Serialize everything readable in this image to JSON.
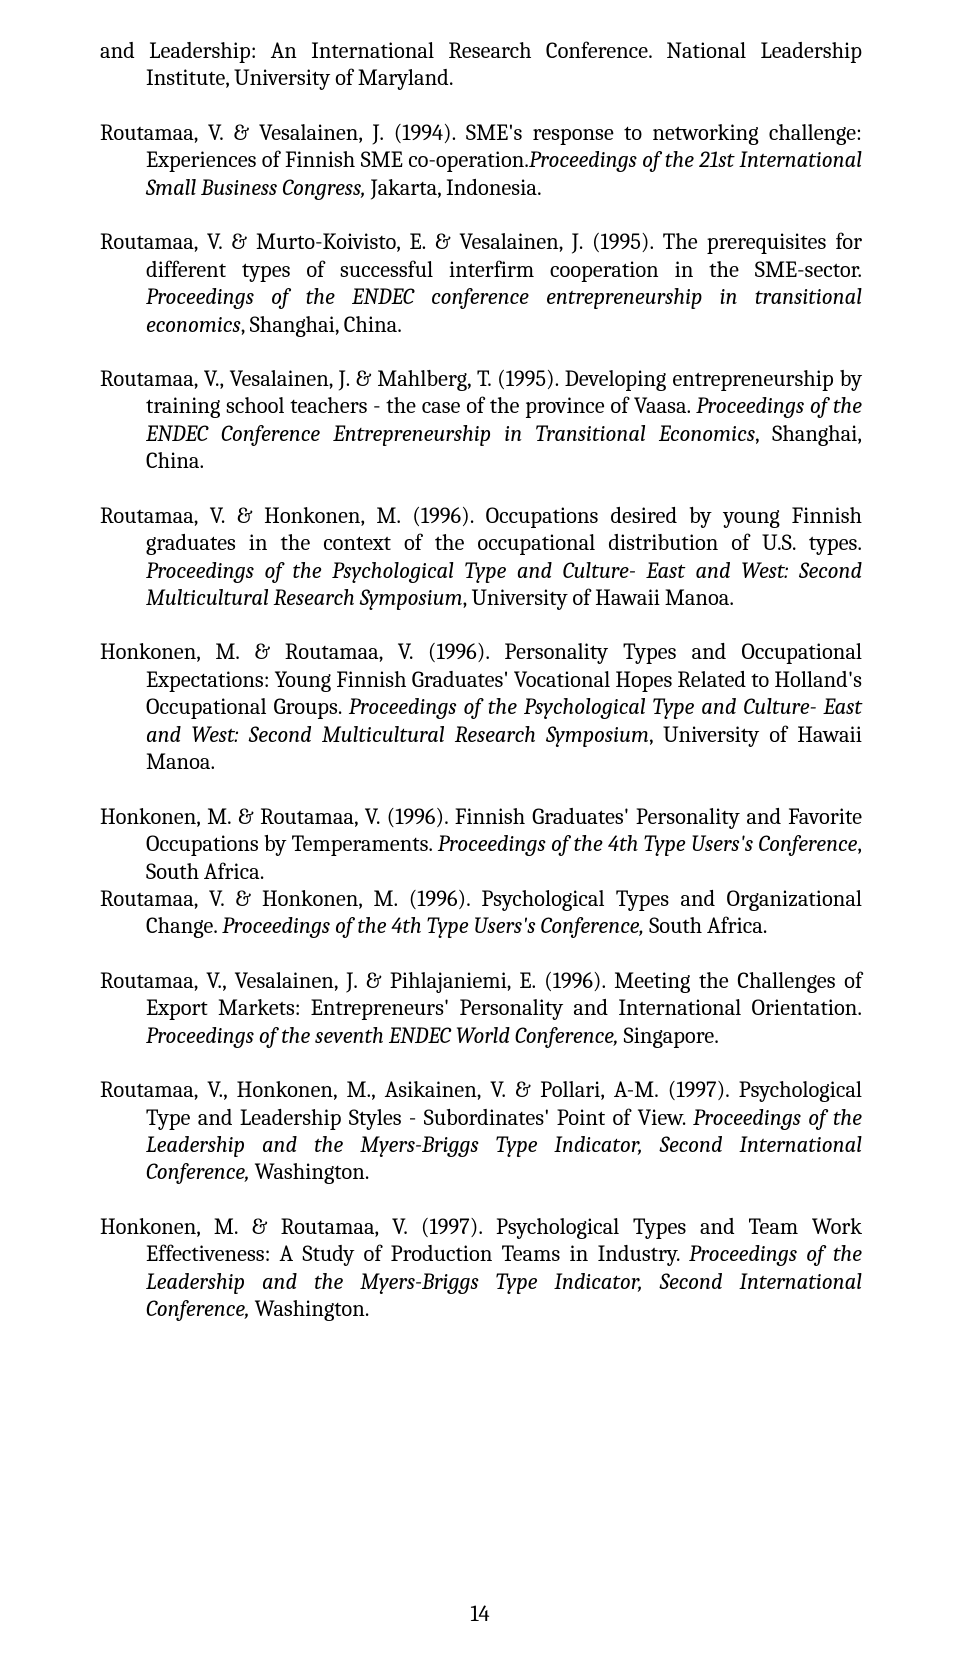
{
  "page_number": "14",
  "references": [
    {
      "authors_title": "and Leadership: An International Research Conference.",
      "venue_prefix": " National Leadership Institute, University of Maryland.",
      "tight": false
    },
    {
      "authors_title": "Routamaa, V. & Vesalainen, J. (1994). SME's response to networking challenge: Experiences of Finnish SME co-operation.",
      "italic1": "Proceedings of the 21st International Small Business Congress,",
      "tail1": " Jakarta, Indonesia.",
      "tight": false
    },
    {
      "authors_title": "Routamaa, V. & Murto-Koivisto, E. & Vesalainen, J. (1995). The prerequisites for different types of successful interfirm cooperation in the SME-sector. ",
      "italic1": "Proceedings of the ENDEC  conference entrepreneurship in transitional economics",
      "tail1": ", Shanghai, China.",
      "tight": false
    },
    {
      "authors_title": "Routamaa, V., Vesalainen, J. & Mahlberg, T. (1995). Developing  entrepreneurship by training school teachers - the case of the province of Vaasa. ",
      "italic1": "Proceedings of the ENDEC Conference Entrepreneurship in Transitional Economics",
      "tail1": ", Shanghai, China.",
      "tight": false
    },
    {
      "authors_title": "Routamaa, V. & Honkonen, M. (1996). Occupations desired by young Finnish graduates in the context of the occupational distribution of U.S. types. ",
      "italic1": "Proceedings of  the Psychological Type and Culture- East and West: Second Multicultural Research Symposium",
      "tail1": ", University of Hawaii Manoa.",
      "tight": false
    },
    {
      "authors_title": "Honkonen, M. & Routamaa, V. (1996). Personality Types and Occupational Expectations: Young Finnish Graduates' Vocational Hopes Related to Holland's Occupational Groups. ",
      "italic1": "Proceedings of the Psychological Type and Culture- East and West: Second Multicultural Research Symposium",
      "tail1": ", University of Hawaii Manoa.",
      "tight": false
    },
    {
      "authors_title": "Honkonen, M. & Routamaa, V. (1996). Finnish Graduates' Personality and Favorite Occupations by Temperaments. ",
      "italic1": "Proceedings of the 4th Type Users's Conference",
      "tail1": ", South Africa.",
      "tight": true
    },
    {
      "authors_title": "Routamaa, V. & Honkonen, M. (1996). Psychological Types and Organizational Change. ",
      "italic1": "Proceedings of the 4th Type Users's Conference,",
      "tail1": " South Africa.",
      "tight": false
    },
    {
      "authors_title": "Routamaa, V., Vesalainen, J. & Pihlajaniemi, E. (1996).  Meeting the Challenges of Export Markets: Entrepreneurs' Personality and International Orientation. ",
      "italic1": "Proceedings of the seventh ENDEC World Conference,",
      "tail1": " Singapore.",
      "tight": false
    },
    {
      "authors_title": "Routamaa, V., Honkonen, M., Asikainen, V. & Pollari, A-M. (1997).  Psychological Type and Leadership Styles - Subordinates' Point of View. ",
      "italic1": "Proceedings of the Leadership and the Myers-Briggs Type Indicator, Second International Conference,",
      "tail1": " Washington.",
      "tight": false
    },
    {
      "authors_title": "Honkonen, M. & Routamaa, V. (1997). Psychological Types and Team Work Effectiveness: A Study of Production Teams  in Industry.  ",
      "italic1": "Proceedings of the Leadership and the Myers-Briggs Type Indicator, Second International Conference,",
      "tail1": " Washington.",
      "tight": false
    }
  ]
}
